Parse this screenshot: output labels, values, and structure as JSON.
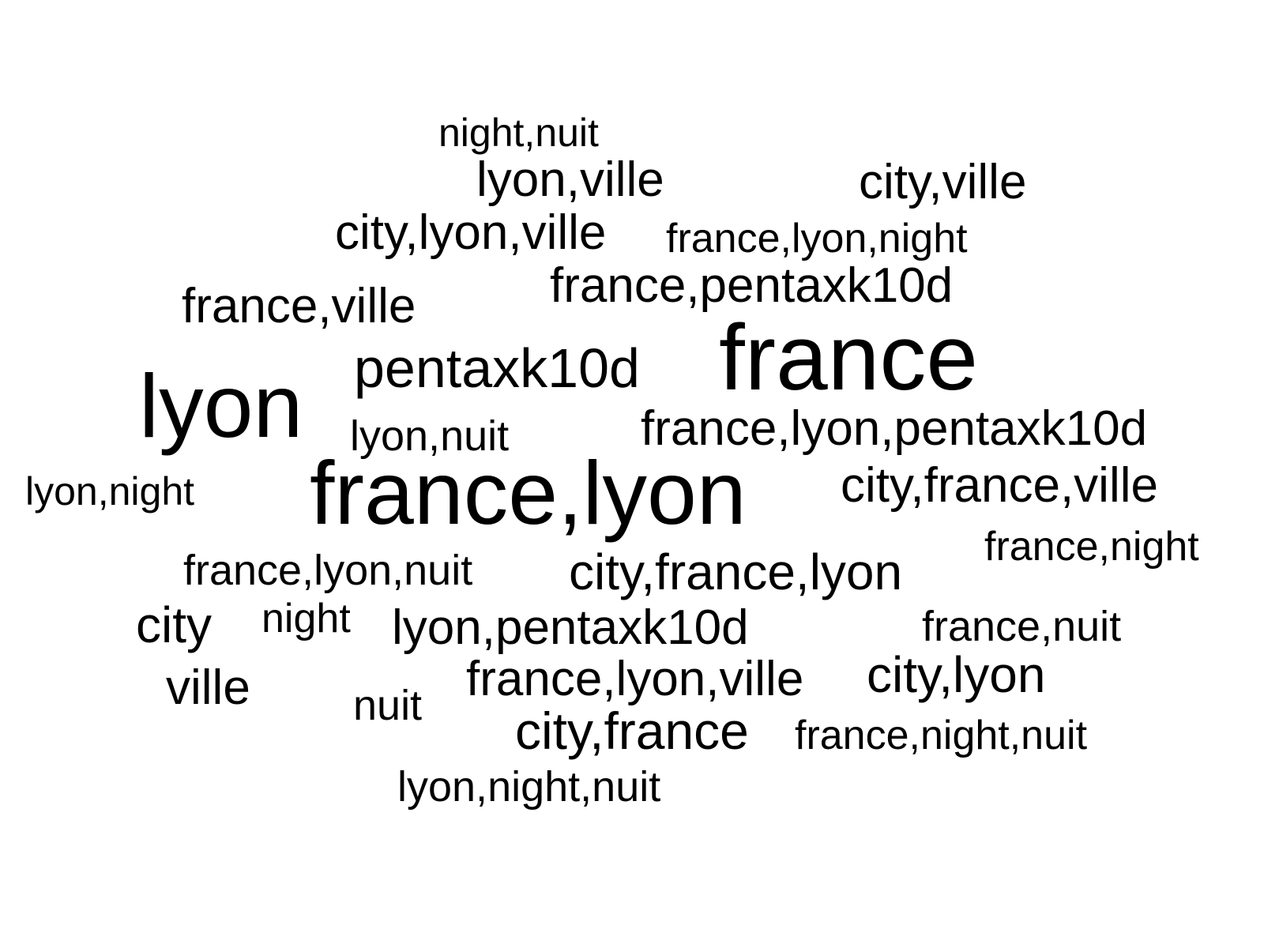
{
  "chart_data": {
    "type": "wordcloud",
    "text_color": "#000000",
    "background": "#ffffff",
    "words": [
      {
        "text": "night,nuit",
        "weight": 2
      },
      {
        "text": "lyon,ville",
        "weight": 3
      },
      {
        "text": "city,ville",
        "weight": 3
      },
      {
        "text": "city,lyon,ville",
        "weight": 3
      },
      {
        "text": "france,lyon,night",
        "weight": 2
      },
      {
        "text": "france,pentaxk10d",
        "weight": 3
      },
      {
        "text": "france,ville",
        "weight": 3
      },
      {
        "text": "pentaxk10d",
        "weight": 4
      },
      {
        "text": "france",
        "weight": 8
      },
      {
        "text": "lyon",
        "weight": 7
      },
      {
        "text": "lyon,nuit",
        "weight": 2
      },
      {
        "text": "france,lyon,pentaxk10d",
        "weight": 3
      },
      {
        "text": "lyon,night",
        "weight": 2
      },
      {
        "text": "france,lyon",
        "weight": 8
      },
      {
        "text": "city,france,ville",
        "weight": 3
      },
      {
        "text": "france,night",
        "weight": 2
      },
      {
        "text": "france,lyon,nuit",
        "weight": 2
      },
      {
        "text": "city,france,lyon",
        "weight": 3
      },
      {
        "text": "city",
        "weight": 3
      },
      {
        "text": "night",
        "weight": 2
      },
      {
        "text": "lyon,pentaxk10d",
        "weight": 3
      },
      {
        "text": "france,nuit",
        "weight": 2
      },
      {
        "text": "ville",
        "weight": 3
      },
      {
        "text": "france,lyon,ville",
        "weight": 3
      },
      {
        "text": "city,lyon",
        "weight": 3
      },
      {
        "text": "nuit",
        "weight": 2
      },
      {
        "text": "city,france",
        "weight": 3
      },
      {
        "text": "france,night,nuit",
        "weight": 2
      },
      {
        "text": "lyon,night,nuit",
        "weight": 2
      }
    ]
  }
}
